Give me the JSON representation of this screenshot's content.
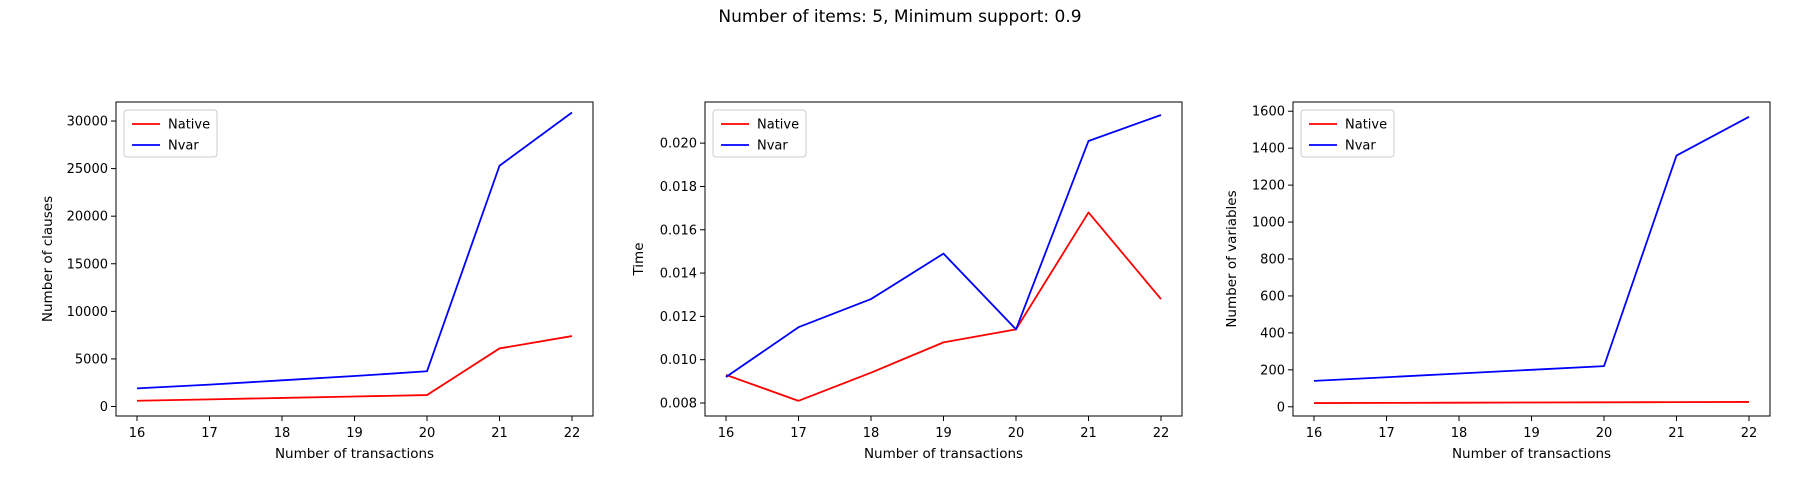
{
  "figure": {
    "suptitle": "Number of items: 5, Minimum support: 0.9"
  },
  "colors": {
    "native": "#ff0000",
    "nvar": "#0000ff"
  },
  "chart_data": [
    {
      "type": "line",
      "xlabel": "Number of transactions",
      "ylabel": "Number of clauses",
      "x": [
        16,
        17,
        18,
        19,
        20,
        21,
        22
      ],
      "xticks": [
        16,
        17,
        18,
        19,
        20,
        21,
        22
      ],
      "yticks": [
        0,
        5000,
        10000,
        15000,
        20000,
        25000,
        30000
      ],
      "ylim": [
        -1000,
        32000
      ],
      "legend": "top-left",
      "series": [
        {
          "name": "Native",
          "color": "#ff0000",
          "values": [
            600,
            750,
            900,
            1050,
            1200,
            6100,
            7400
          ]
        },
        {
          "name": "Nvar",
          "color": "#0000ff",
          "values": [
            1900,
            2300,
            2750,
            3200,
            3700,
            25300,
            30900
          ]
        }
      ]
    },
    {
      "type": "line",
      "xlabel": "Number of transactions",
      "ylabel": "Time",
      "x": [
        16,
        17,
        18,
        19,
        20,
        21,
        22
      ],
      "xticks": [
        16,
        17,
        18,
        19,
        20,
        21,
        22
      ],
      "yticks": [
        0.008,
        0.01,
        0.012,
        0.014,
        0.016,
        0.018,
        0.02
      ],
      "ytick_labels": [
        "0.008",
        "0.010",
        "0.012",
        "0.014",
        "0.016",
        "0.018",
        "0.020"
      ],
      "ylim": [
        0.0074,
        0.0219
      ],
      "legend": "top-left",
      "series": [
        {
          "name": "Native",
          "color": "#ff0000",
          "values": [
            0.0093,
            0.0081,
            0.0094,
            0.0108,
            0.0114,
            0.0168,
            0.0128
          ]
        },
        {
          "name": "Nvar",
          "color": "#0000ff",
          "values": [
            0.0092,
            0.0115,
            0.0128,
            0.0149,
            0.0114,
            0.0201,
            0.0213
          ]
        }
      ]
    },
    {
      "type": "line",
      "xlabel": "Number of transactions",
      "ylabel": "Number of variables",
      "x": [
        16,
        17,
        18,
        19,
        20,
        21,
        22
      ],
      "xticks": [
        16,
        17,
        18,
        19,
        20,
        21,
        22
      ],
      "yticks": [
        0,
        200,
        400,
        600,
        800,
        1000,
        1200,
        1400,
        1600
      ],
      "ylim": [
        -50,
        1650
      ],
      "legend": "top-left",
      "series": [
        {
          "name": "Native",
          "color": "#ff0000",
          "values": [
            20,
            21,
            22,
            23,
            24,
            25,
            26
          ]
        },
        {
          "name": "Nvar",
          "color": "#0000ff",
          "values": [
            140,
            160,
            180,
            200,
            220,
            1360,
            1570
          ]
        }
      ]
    }
  ]
}
